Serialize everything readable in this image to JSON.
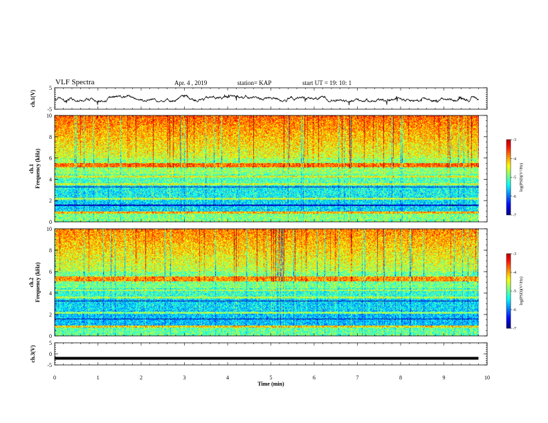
{
  "header": {
    "title": "VLF  Spectra",
    "date": "Apr. 4  , 2019",
    "station": "station= KAP",
    "start": "start  UT  =    19: 10: 1"
  },
  "chart_data": [
    {
      "type": "line",
      "panel": "ch1-waveform",
      "ylabel": "ch.1(V)",
      "ylim": [
        -5,
        5
      ],
      "yticks": [
        "5",
        "-5"
      ],
      "xlim": [
        0,
        10
      ],
      "description_values": "noisy waveform fluctuating roughly between -1.5 V and 1.5 V around 0 V over 0 to 9.8 min",
      "x_range": [
        0,
        9.8
      ],
      "amplitude_v": 1.5
    },
    {
      "type": "heatmap",
      "panel": "ch1-spectrogram",
      "ylabel": "ch.1\nFrequency (kHz)",
      "ylabel_line1": "ch.1",
      "ylabel_line2": "Frequency  (kHz)",
      "ylim": [
        0,
        10
      ],
      "yticks": [
        "0",
        "2",
        "4",
        "6",
        "8",
        "10"
      ],
      "xlim": [
        0,
        10
      ],
      "x_range": [
        0,
        9.8
      ],
      "colorbar": {
        "label": "log(PSD)(V²/Hz)",
        "range": [
          -7,
          -3
        ],
        "ticks": [
          "-3",
          "-4",
          "-5",
          "-6",
          "-7"
        ]
      }
    },
    {
      "type": "heatmap",
      "panel": "ch2-spectrogram",
      "ylabel_line1": "ch.2",
      "ylabel_line2": "Frequency  (kHz)",
      "ylim": [
        0,
        10
      ],
      "yticks": [
        "0",
        "2",
        "4",
        "6",
        "8",
        "10"
      ],
      "xlim": [
        0,
        10
      ],
      "x_range": [
        0,
        9.8
      ],
      "colorbar": {
        "label": "log(PSD)(V²/Hz)",
        "range": [
          -7,
          -3
        ],
        "ticks": [
          "-3",
          "-4",
          "-5",
          "-6",
          "-7"
        ]
      }
    },
    {
      "type": "line",
      "panel": "ch3-waveform",
      "ylabel": "ch.3(V)",
      "ylim": [
        -5,
        5
      ],
      "yticks": [
        "5",
        "0",
        "-5"
      ],
      "xlim": [
        0,
        10
      ],
      "x_range": [
        0,
        9.8
      ],
      "constant_value": -2,
      "xlabel": "Time  (min)",
      "xticks": [
        "0",
        "1",
        "2",
        "3",
        "4",
        "5",
        "6",
        "7",
        "8",
        "9",
        "10"
      ]
    }
  ],
  "colorbar_label": "log(PSD)(V²/Hz)"
}
